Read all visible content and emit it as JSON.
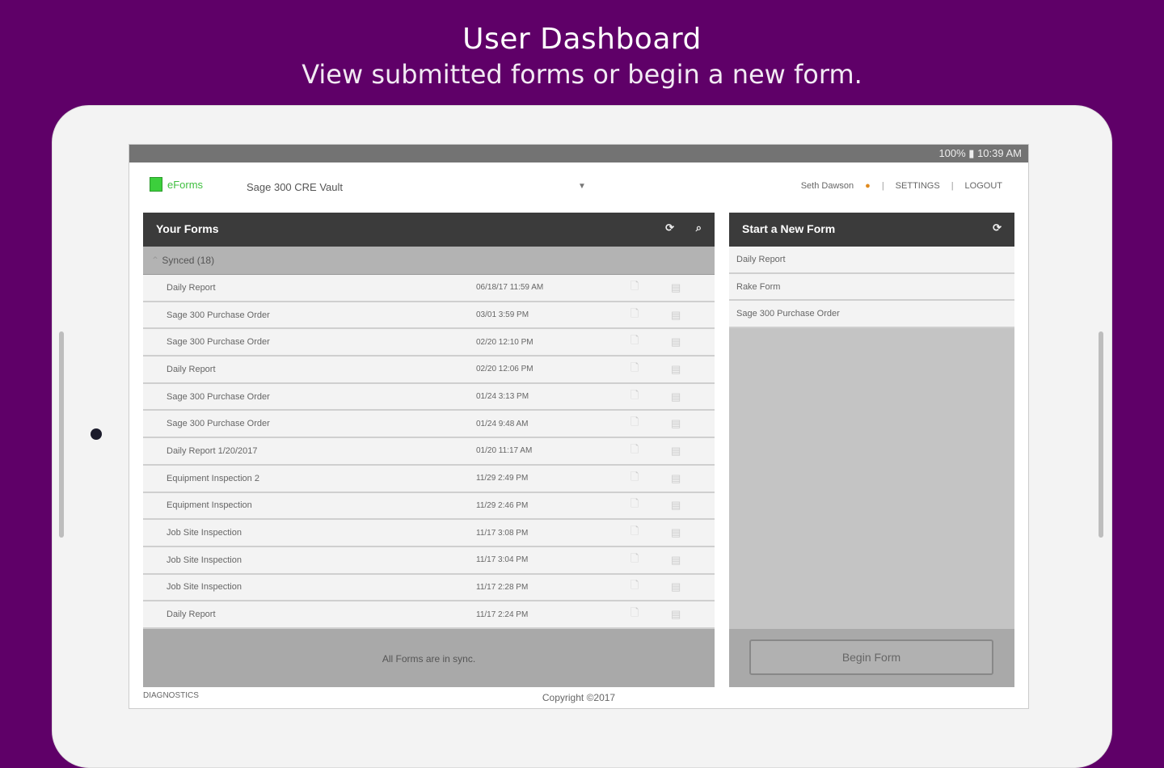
{
  "hero": {
    "title": "User Dashboard",
    "subtitle": "View submitted forms or begin a new form."
  },
  "status_bar": {
    "text": "100% ▮ 10:39 AM",
    "battery_percent": 100,
    "time": "10:39 AM"
  },
  "app": {
    "logo": "eForms",
    "vault": "Sage 300 CRE Vault",
    "user": "Seth Dawson",
    "settings": "SETTINGS",
    "logout": "LOGOUT"
  },
  "your_forms": {
    "title": "Your Forms",
    "group": "Synced (18)",
    "rows": [
      {
        "name": "Daily Report",
        "date": "06/18/17 11:59 AM"
      },
      {
        "name": "Sage 300 Purchase Order",
        "date": "03/01 3:59 PM"
      },
      {
        "name": "Sage 300 Purchase Order",
        "date": "02/20 12:10 PM"
      },
      {
        "name": "Daily Report",
        "date": "02/20 12:06 PM"
      },
      {
        "name": "Sage 300 Purchase Order",
        "date": "01/24 3:13 PM"
      },
      {
        "name": "Sage 300 Purchase Order",
        "date": "01/24 9:48 AM"
      },
      {
        "name": "Daily Report 1/20/2017",
        "date": "01/20 11:17 AM"
      },
      {
        "name": "Equipment Inspection 2",
        "date": "11/29 2:49 PM"
      },
      {
        "name": "Equipment Inspection",
        "date": "11/29 2:46 PM"
      },
      {
        "name": "Job Site Inspection",
        "date": "11/17 3:08 PM"
      },
      {
        "name": "Job Site Inspection",
        "date": "11/17 3:04 PM"
      },
      {
        "name": "Job Site Inspection",
        "date": "11/17 2:28 PM"
      },
      {
        "name": "Daily Report",
        "date": "11/17 2:24 PM"
      }
    ],
    "footer": "All Forms are in sync."
  },
  "new_form": {
    "title": "Start a New Form",
    "items": [
      "Daily Report",
      "Rake Form",
      "Sage 300 Purchase Order"
    ],
    "begin": "Begin Form"
  },
  "footer": {
    "diagnostics": "DIAGNOSTICS",
    "copyright": "Copyright ©2017"
  }
}
